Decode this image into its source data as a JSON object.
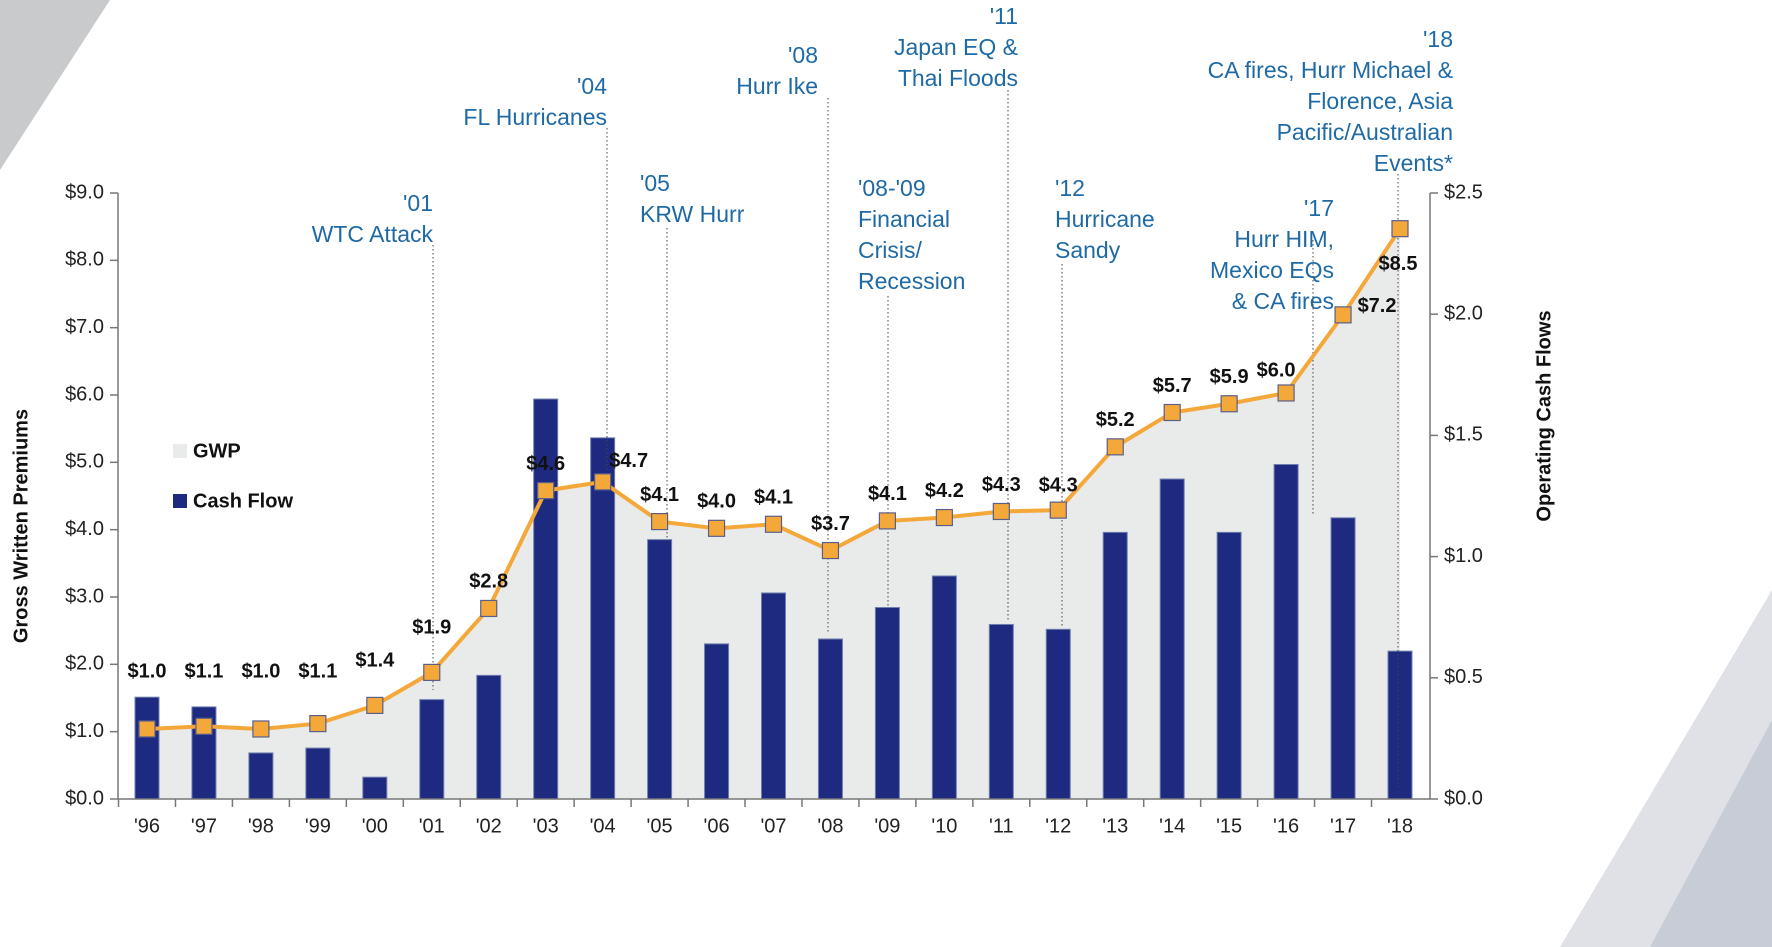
{
  "chart_data": {
    "type": "bar_line",
    "categories": [
      "'96",
      "'97",
      "'98",
      "'99",
      "'00",
      "'01",
      "'02",
      "'03",
      "'04",
      "'05",
      "'06",
      "'07",
      "'08",
      "'09",
      "'10",
      "'11",
      "'12",
      "'13",
      "'14",
      "'15",
      "'16",
      "'17",
      "'18"
    ],
    "series": [
      {
        "name": "GWP",
        "type": "area_line",
        "axis": "y",
        "color": "#f5a83a",
        "fill": "#e9eaea",
        "values": [
          1.04,
          1.08,
          1.04,
          1.12,
          1.39,
          1.88,
          2.83,
          4.58,
          4.71,
          4.12,
          4.02,
          4.08,
          3.69,
          4.13,
          4.18,
          4.27,
          4.29,
          5.23,
          5.74,
          5.87,
          6.03,
          7.19,
          8.47
        ],
        "value_labels": [
          "$1.0",
          "$1.1",
          "$1.0",
          "$1.1",
          "$1.4",
          "$1.9",
          "$2.8",
          "$4.6",
          "$4.7",
          "$4.1",
          "$4.0",
          "$4.1",
          "$3.7",
          "$4.1",
          "$4.2",
          "$4.3",
          "$4.3",
          "$5.2",
          "$5.7",
          "$5.9",
          "$6.0",
          "$7.2",
          "$8.5"
        ]
      },
      {
        "name": "Cash Flow",
        "type": "bar",
        "axis": "y2",
        "color": "#1e2a80",
        "values": [
          0.42,
          0.38,
          0.19,
          0.21,
          0.09,
          0.41,
          0.51,
          1.65,
          1.49,
          1.07,
          0.64,
          0.85,
          0.66,
          0.79,
          0.92,
          0.72,
          0.7,
          1.1,
          1.32,
          1.1,
          1.38,
          1.16,
          0.61
        ]
      }
    ],
    "ylabel": "Gross Written Premiums",
    "y2label": "Operating Cash Flows",
    "ylim": [
      0,
      9
    ],
    "yticks": [
      {
        "value": 0,
        "label": "$0.0"
      },
      {
        "value": 1,
        "label": "$1.0"
      },
      {
        "value": 2,
        "label": "$2.0"
      },
      {
        "value": 3,
        "label": "$3.0"
      },
      {
        "value": 4,
        "label": "$4.0"
      },
      {
        "value": 5,
        "label": "$5.0"
      },
      {
        "value": 6,
        "label": "$6.0"
      },
      {
        "value": 7,
        "label": "$7.0"
      },
      {
        "value": 8,
        "label": "$8.0"
      },
      {
        "value": 9,
        "label": "$9.0"
      }
    ],
    "y2lim": [
      0,
      2.5
    ],
    "y2ticks": [
      {
        "value": 0,
        "label": "$0.0"
      },
      {
        "value": 0.5,
        "label": "$0.5"
      },
      {
        "value": 1,
        "label": "$1.0"
      },
      {
        "value": 1.5,
        "label": "$1.5"
      },
      {
        "value": 2,
        "label": "$2.0"
      },
      {
        "value": 2.5,
        "label": "$2.5"
      }
    ],
    "annotations": [
      {
        "lines": [
          "'01",
          "WTC Attack"
        ]
      },
      {
        "lines": [
          "'04",
          "FL Hurricanes"
        ]
      },
      {
        "lines": [
          "'05",
          "KRW Hurr"
        ]
      },
      {
        "lines": [
          "'08",
          "Hurr Ike"
        ]
      },
      {
        "lines": [
          "'08-'09",
          "Financial",
          "Crisis/",
          "Recession"
        ]
      },
      {
        "lines": [
          "'11",
          "Japan EQ &",
          "Thai Floods"
        ]
      },
      {
        "lines": [
          "'12",
          "Hurricane",
          "Sandy"
        ]
      },
      {
        "lines": [
          "'17",
          "Hurr HIM,",
          "Mexico EQs",
          "& CA fires"
        ]
      },
      {
        "lines": [
          "'18",
          "CA fires, Hurr Michael &",
          "Florence, Asia",
          "Pacific/Australian",
          "Events*"
        ]
      }
    ]
  }
}
